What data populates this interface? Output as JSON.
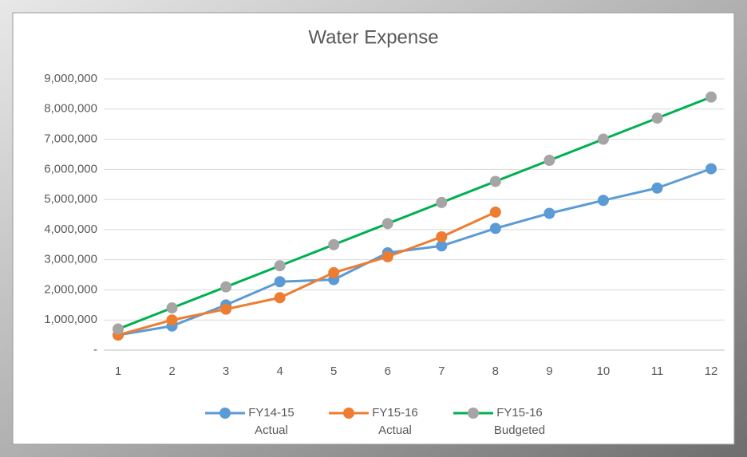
{
  "chart_data": {
    "type": "line",
    "title": "Water Expense",
    "categories": [
      "1",
      "2",
      "3",
      "4",
      "5",
      "6",
      "7",
      "8",
      "9",
      "10",
      "11",
      "12"
    ],
    "series": [
      {
        "name": "FY14-15 Actual",
        "color": "#5b9bd5",
        "marker_color": "#5b9bd5",
        "values": [
          500000,
          800000,
          1500000,
          2270000,
          2340000,
          3230000,
          3460000,
          4040000,
          4540000,
          4970000,
          5380000,
          6020000
        ]
      },
      {
        "name": "FY15-16 Actual",
        "color": "#ed7d31",
        "marker_color": "#ed7d31",
        "values": [
          500000,
          1000000,
          1360000,
          1740000,
          2570000,
          3100000,
          3760000,
          4580000,
          null,
          null,
          null,
          null
        ]
      },
      {
        "name": "FY15-16 Budgeted",
        "color": "#00b050",
        "marker_color": "#a5a5a5",
        "values": [
          700000,
          1400000,
          2100000,
          2800000,
          3500000,
          4200000,
          4900000,
          5600000,
          6300000,
          7000000,
          7700000,
          8400000
        ]
      }
    ],
    "ylim": [
      0,
      9000000
    ],
    "yticks": [
      {
        "value": 0,
        "label": "-"
      },
      {
        "value": 1000000,
        "label": "1,000,000"
      },
      {
        "value": 2000000,
        "label": "2,000,000"
      },
      {
        "value": 3000000,
        "label": "3,000,000"
      },
      {
        "value": 4000000,
        "label": "4,000,000"
      },
      {
        "value": 5000000,
        "label": "5,000,000"
      },
      {
        "value": 6000000,
        "label": "6,000,000"
      },
      {
        "value": 7000000,
        "label": "7,000,000"
      },
      {
        "value": 8000000,
        "label": "8,000,000"
      },
      {
        "value": 9000000,
        "label": "9,000,000"
      }
    ],
    "grid": true,
    "legend": "bottom"
  }
}
